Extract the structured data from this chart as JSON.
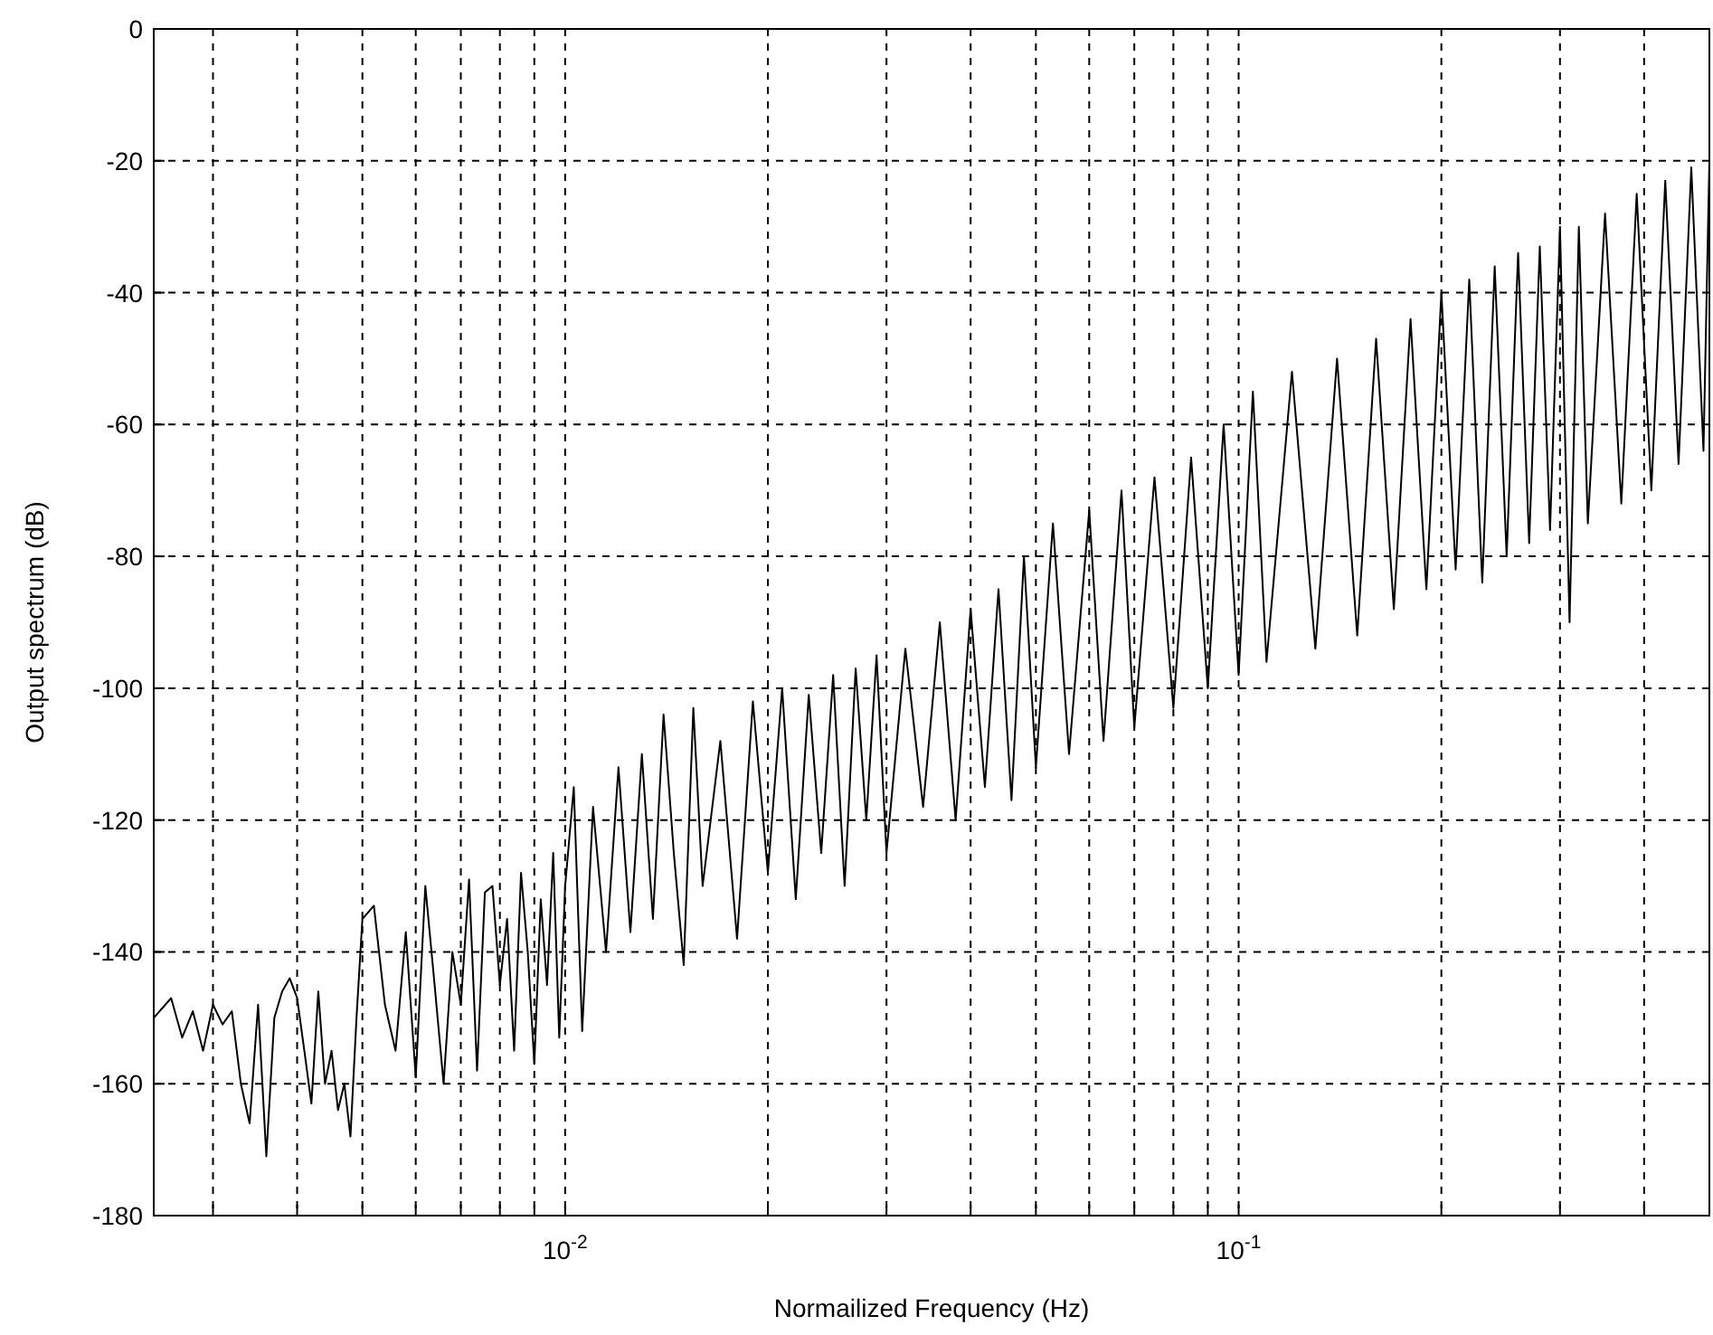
{
  "chart_data": {
    "type": "line",
    "xlabel": "Normailized Frequency (Hz)",
    "ylabel": "Output spectrum (dB)",
    "log": "x",
    "grid": true,
    "line_style": "solid",
    "marker": "none",
    "xlim": [
      0.00245,
      0.5
    ],
    "ylim": [
      -180,
      0
    ],
    "xticks": [
      {
        "value": 0.003,
        "label": null
      },
      {
        "value": 0.004,
        "label": null
      },
      {
        "value": 0.005,
        "label": null
      },
      {
        "value": 0.006,
        "label": null
      },
      {
        "value": 0.007,
        "label": null
      },
      {
        "value": 0.008,
        "label": null
      },
      {
        "value": 0.009,
        "label": null
      },
      {
        "value": 0.01,
        "label": "10$^{-2}$"
      },
      {
        "value": 0.02,
        "label": null
      },
      {
        "value": 0.03,
        "label": null
      },
      {
        "value": 0.04,
        "label": null
      },
      {
        "value": 0.05,
        "label": null
      },
      {
        "value": 0.06,
        "label": null
      },
      {
        "value": 0.07,
        "label": null
      },
      {
        "value": 0.08,
        "label": null
      },
      {
        "value": 0.09,
        "label": null
      },
      {
        "value": 0.1,
        "label": "10$^{-1}$"
      },
      {
        "value": 0.2,
        "label": null
      },
      {
        "value": 0.3,
        "label": null
      },
      {
        "value": 0.4,
        "label": null
      },
      {
        "value": 0.5,
        "label": null
      }
    ],
    "yticks": [
      -180,
      -160,
      -140,
      -120,
      -100,
      -80,
      -60,
      -40,
      -20,
      0
    ],
    "series": [
      {
        "color": "#000000",
        "x": [
          0.00245,
          0.0026,
          0.0027,
          0.0028,
          0.0029,
          0.003,
          0.0031,
          0.0032,
          0.0033,
          0.0034,
          0.0035,
          0.0036,
          0.0037,
          0.0038,
          0.0039,
          0.004,
          0.0041,
          0.0042,
          0.0043,
          0.0044,
          0.0045,
          0.0046,
          0.0047,
          0.0048,
          0.0049,
          0.005,
          0.0052,
          0.0054,
          0.0056,
          0.0058,
          0.006,
          0.0062,
          0.0064,
          0.0066,
          0.0068,
          0.007,
          0.0072,
          0.0074,
          0.0076,
          0.0078,
          0.008,
          0.0082,
          0.0084,
          0.0086,
          0.0088,
          0.009,
          0.0092,
          0.0094,
          0.0096,
          0.0098,
          0.01,
          0.0103,
          0.0106,
          0.011,
          0.0115,
          0.012,
          0.0125,
          0.013,
          0.0135,
          0.014,
          0.0145,
          0.015,
          0.0155,
          0.016,
          0.017,
          0.018,
          0.019,
          0.02,
          0.021,
          0.022,
          0.023,
          0.024,
          0.025,
          0.026,
          0.027,
          0.028,
          0.029,
          0.03,
          0.032,
          0.034,
          0.036,
          0.038,
          0.04,
          0.042,
          0.044,
          0.046,
          0.048,
          0.05,
          0.053,
          0.056,
          0.06,
          0.063,
          0.067,
          0.07,
          0.075,
          0.08,
          0.085,
          0.09,
          0.095,
          0.1,
          0.105,
          0.11,
          0.12,
          0.13,
          0.14,
          0.15,
          0.16,
          0.17,
          0.18,
          0.19,
          0.2,
          0.21,
          0.22,
          0.23,
          0.24,
          0.25,
          0.26,
          0.27,
          0.28,
          0.29,
          0.3,
          0.31,
          0.32,
          0.33,
          0.35,
          0.37,
          0.39,
          0.41,
          0.43,
          0.45,
          0.47,
          0.49,
          0.5
        ],
        "values": [
          -150,
          -147,
          -153,
          -149,
          -155,
          -148,
          -151,
          -149,
          -160,
          -166,
          -148,
          -171,
          -150,
          -146,
          -144,
          -147,
          -155,
          -163,
          -146,
          -160,
          -155,
          -164,
          -160,
          -168,
          -150,
          -135,
          -133,
          -148,
          -155,
          -137,
          -159,
          -130,
          -145,
          -160,
          -140,
          -148,
          -129,
          -158,
          -131,
          -130,
          -145,
          -135,
          -155,
          -128,
          -140,
          -157,
          -132,
          -145,
          -125,
          -153,
          -130,
          -115,
          -152,
          -118,
          -140,
          -112,
          -137,
          -110,
          -135,
          -104,
          -125,
          -142,
          -103,
          -130,
          -108,
          -138,
          -102,
          -128,
          -100,
          -132,
          -101,
          -125,
          -98,
          -130,
          -97,
          -120,
          -95,
          -125,
          -94,
          -118,
          -90,
          -120,
          -88,
          -115,
          -85,
          -117,
          -80,
          -112,
          -75,
          -110,
          -73,
          -108,
          -70,
          -106,
          -68,
          -103,
          -65,
          -100,
          -60,
          -98,
          -55,
          -96,
          -52,
          -94,
          -50,
          -92,
          -47,
          -88,
          -44,
          -85,
          -40,
          -82,
          -38,
          -84,
          -36,
          -80,
          -34,
          -78,
          -33,
          -76,
          -30,
          -90,
          -30,
          -75,
          -28,
          -72,
          -25,
          -70,
          -23,
          -66,
          -21,
          -64,
          -20
        ]
      }
    ]
  }
}
